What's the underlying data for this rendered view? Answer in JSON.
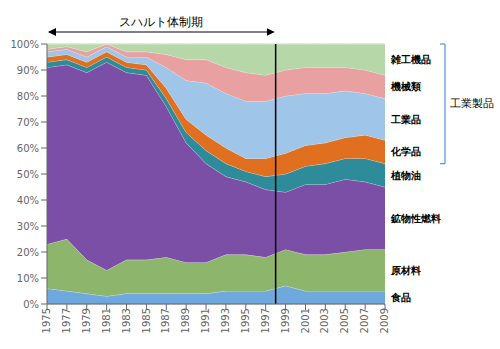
{
  "chart_data": {
    "type": "area",
    "stacked": true,
    "grid": true,
    "x": [
      1975,
      1977,
      1979,
      1981,
      1983,
      1985,
      1987,
      1989,
      1991,
      1993,
      1995,
      1997,
      1999,
      2001,
      2003,
      2005,
      2007,
      2009
    ],
    "xlim": [
      1975,
      2009
    ],
    "xticks": [
      1975,
      1977,
      1979,
      1981,
      1983,
      1985,
      1987,
      1989,
      1991,
      1993,
      1995,
      1997,
      1999,
      2001,
      2003,
      2005,
      2007,
      2009
    ],
    "ylim": [
      0,
      100
    ],
    "yticks": [
      {
        "value": 0,
        "label": "0%"
      },
      {
        "value": 10,
        "label": "10%"
      },
      {
        "value": 20,
        "label": "20%"
      },
      {
        "value": 30,
        "label": "30%"
      },
      {
        "value": 40,
        "label": "40%"
      },
      {
        "value": 50,
        "label": "50%"
      },
      {
        "value": 60,
        "label": "60%"
      },
      {
        "value": 70,
        "label": "70%"
      },
      {
        "value": 80,
        "label": "80%"
      },
      {
        "value": 90,
        "label": "90%"
      },
      {
        "value": 100,
        "label": "100%"
      }
    ],
    "series": [
      {
        "name": "食品",
        "color": "#6fa8dc",
        "values": [
          6,
          5,
          4,
          3,
          4,
          4,
          4,
          4,
          4,
          5,
          5,
          5,
          7,
          5,
          5,
          5,
          5,
          5
        ]
      },
      {
        "name": "原材料",
        "color": "#8db56b",
        "values": [
          17,
          20,
          13,
          10,
          13,
          13,
          14,
          12,
          12,
          14,
          14,
          13,
          14,
          14,
          14,
          15,
          16,
          16
        ]
      },
      {
        "name": "鉱物性燃料",
        "color": "#7b4fa6",
        "values": [
          68,
          67,
          72,
          80,
          72,
          71,
          58,
          46,
          38,
          30,
          28,
          26,
          22,
          27,
          27,
          28,
          26,
          24
        ]
      },
      {
        "name": "植物油",
        "color": "#2e8b9a",
        "values": [
          2,
          2,
          2,
          2,
          2,
          2,
          3,
          4,
          5,
          5,
          4,
          5,
          7,
          7,
          8,
          8,
          9,
          9
        ]
      },
      {
        "name": "化学品",
        "color": "#e07020",
        "values": [
          2,
          2,
          2,
          2,
          2,
          2,
          4,
          5,
          6,
          6,
          5,
          7,
          8,
          8,
          8,
          8,
          9,
          9
        ]
      },
      {
        "name": "工業品",
        "color": "#9fc5e8",
        "values": [
          2,
          2,
          2,
          2,
          2,
          3,
          8,
          15,
          20,
          21,
          22,
          22,
          22,
          20,
          19,
          18,
          16,
          16
        ]
      },
      {
        "name": "機械類",
        "color": "#e8a0a0",
        "values": [
          1,
          1,
          2,
          1,
          2,
          2,
          5,
          8,
          9,
          10,
          11,
          10,
          10,
          10,
          10,
          9,
          9,
          9
        ]
      },
      {
        "name": "雑工機品",
        "color": "#b6d7a8",
        "values": [
          2,
          1,
          3,
          0,
          3,
          3,
          4,
          6,
          6,
          9,
          11,
          12,
          10,
          9,
          9,
          9,
          10,
          12
        ]
      }
    ],
    "annotations": [
      {
        "type": "vline",
        "x": 1998
      },
      {
        "type": "arrow",
        "text": "スハルト体制期",
        "x": [
          1975,
          1998
        ]
      },
      {
        "type": "bracket",
        "text": "工業製品",
        "series": [
          "化学品",
          "工業品",
          "機械類",
          "雑工機品"
        ]
      }
    ]
  }
}
